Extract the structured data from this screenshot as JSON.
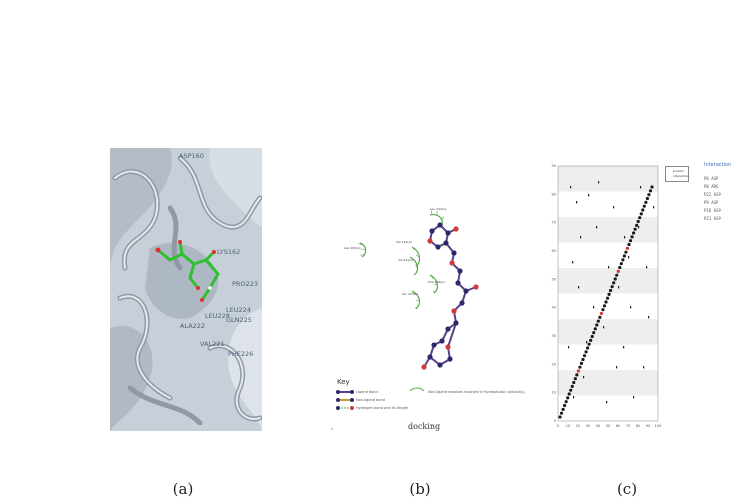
{
  "captions": {
    "a": "(a)",
    "b": "(b)",
    "c": "(c)"
  },
  "panel_a": {
    "residue_labels": [
      "ASP160",
      "LYS162",
      "PRO223",
      "LEU224",
      "GLN225",
      "PHE226",
      "ALA222",
      "VAL221",
      "LEU228"
    ]
  },
  "panel_b": {
    "key_title": "Key",
    "key_items": [
      "Ligand bond",
      "Non-ligand bond",
      "Hydrogen bond and its length",
      "Non-ligand residues involved in hydrophobic contact(s)"
    ],
    "caption_text": "docking",
    "hydrophobic_residues": [
      "Asp 160(A)",
      "Leu 224(A)",
      "Ala 222(A)",
      "Val 221(A)",
      "Phe 226(A)",
      "Gln 225(A)"
    ]
  },
  "panel_c": {
    "legend_entries": [
      "protein",
      "interaction"
    ],
    "right_title": "Interaction",
    "right_rows": [
      "P6  ASP",
      "P8  ARG",
      "P22  ASP",
      "P9  ASP",
      "P16  ASP",
      "P21  ASP"
    ],
    "x_ticks": [
      "0",
      "10",
      "20",
      "30",
      "40",
      "50",
      "60",
      "70",
      "80",
      "90",
      "100"
    ],
    "y_ticks": [
      "0",
      "10",
      "20",
      "30",
      "40",
      "50",
      "60",
      "70",
      "80",
      "90"
    ]
  }
}
